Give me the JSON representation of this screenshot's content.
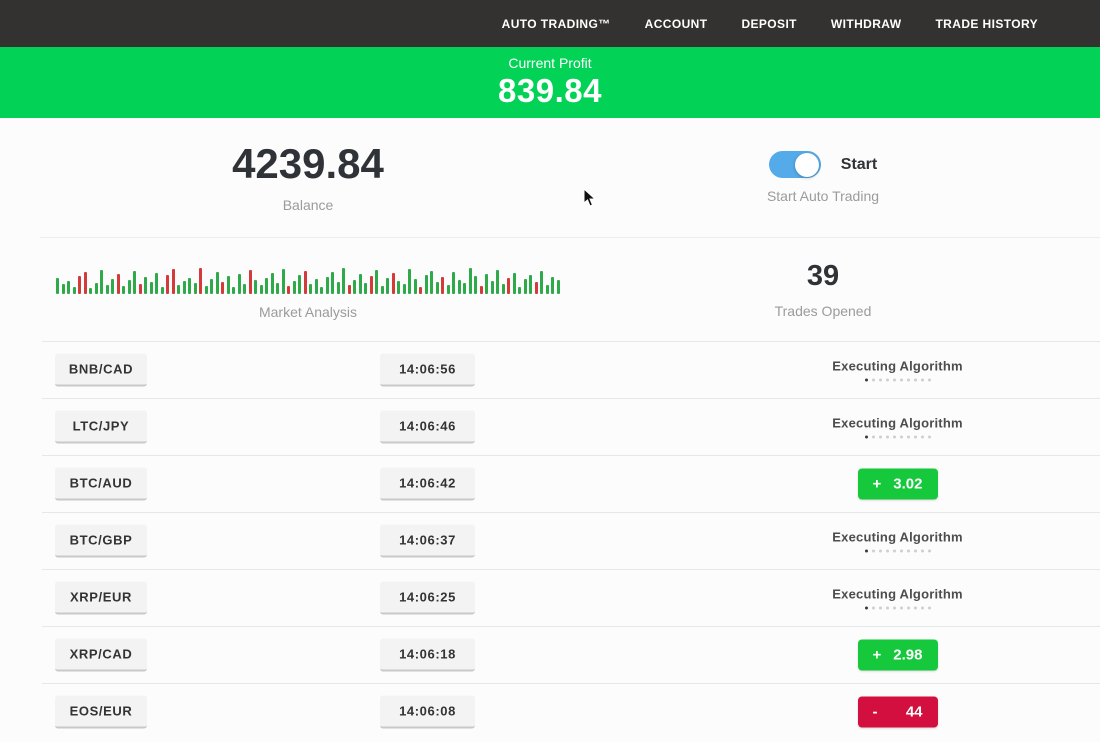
{
  "nav": {
    "items": [
      "AUTO TRADING™",
      "ACCOUNT",
      "DEPOSIT",
      "WITHDRAW",
      "TRADE HISTORY"
    ]
  },
  "banner": {
    "label": "Current Profit",
    "value": "839.84"
  },
  "balance": {
    "value": "4239.84",
    "label": "Balance"
  },
  "auto_trading": {
    "toggle_state": "on",
    "toggle_label": "Start",
    "label": "Start Auto Trading"
  },
  "market_analysis": {
    "label": "Market Analysis",
    "bars": [
      [
        16,
        "g"
      ],
      [
        10,
        "g"
      ],
      [
        13,
        "g"
      ],
      [
        7,
        "g"
      ],
      [
        18,
        "r"
      ],
      [
        22,
        "r"
      ],
      [
        6,
        "g"
      ],
      [
        11,
        "g"
      ],
      [
        24,
        "g"
      ],
      [
        9,
        "g"
      ],
      [
        15,
        "g"
      ],
      [
        20,
        "r"
      ],
      [
        8,
        "g"
      ],
      [
        14,
        "g"
      ],
      [
        23,
        "g"
      ],
      [
        10,
        "r"
      ],
      [
        17,
        "g"
      ],
      [
        12,
        "g"
      ],
      [
        21,
        "g"
      ],
      [
        7,
        "g"
      ],
      [
        19,
        "r"
      ],
      [
        25,
        "r"
      ],
      [
        9,
        "g"
      ],
      [
        13,
        "g"
      ],
      [
        16,
        "g"
      ],
      [
        11,
        "g"
      ],
      [
        26,
        "r"
      ],
      [
        8,
        "g"
      ],
      [
        15,
        "g"
      ],
      [
        22,
        "g"
      ],
      [
        12,
        "r"
      ],
      [
        18,
        "g"
      ],
      [
        7,
        "g"
      ],
      [
        20,
        "g"
      ],
      [
        10,
        "g"
      ],
      [
        24,
        "r"
      ],
      [
        14,
        "g"
      ],
      [
        9,
        "g"
      ],
      [
        16,
        "g"
      ],
      [
        21,
        "g"
      ],
      [
        11,
        "g"
      ],
      [
        25,
        "g"
      ],
      [
        8,
        "r"
      ],
      [
        13,
        "g"
      ],
      [
        19,
        "g"
      ],
      [
        23,
        "r"
      ],
      [
        10,
        "g"
      ],
      [
        15,
        "g"
      ],
      [
        7,
        "g"
      ],
      [
        17,
        "g"
      ],
      [
        22,
        "g"
      ],
      [
        12,
        "g"
      ],
      [
        26,
        "g"
      ],
      [
        9,
        "r"
      ],
      [
        14,
        "g"
      ],
      [
        20,
        "g"
      ],
      [
        11,
        "g"
      ],
      [
        18,
        "r"
      ],
      [
        24,
        "g"
      ],
      [
        8,
        "g"
      ],
      [
        16,
        "g"
      ],
      [
        21,
        "r"
      ],
      [
        13,
        "g"
      ],
      [
        10,
        "g"
      ],
      [
        25,
        "g"
      ],
      [
        15,
        "g"
      ],
      [
        7,
        "r"
      ],
      [
        19,
        "g"
      ],
      [
        23,
        "g"
      ],
      [
        12,
        "g"
      ],
      [
        17,
        "r"
      ],
      [
        9,
        "g"
      ],
      [
        22,
        "g"
      ],
      [
        14,
        "g"
      ],
      [
        11,
        "g"
      ],
      [
        26,
        "g"
      ],
      [
        18,
        "g"
      ],
      [
        8,
        "r"
      ],
      [
        20,
        "g"
      ],
      [
        13,
        "g"
      ],
      [
        24,
        "g"
      ],
      [
        10,
        "g"
      ],
      [
        16,
        "r"
      ],
      [
        21,
        "g"
      ],
      [
        7,
        "g"
      ],
      [
        15,
        "g"
      ],
      [
        19,
        "g"
      ],
      [
        12,
        "r"
      ],
      [
        23,
        "g"
      ],
      [
        9,
        "g"
      ],
      [
        17,
        "g"
      ],
      [
        14,
        "g"
      ]
    ]
  },
  "trades_opened": {
    "value": "39",
    "label": "Trades Opened"
  },
  "status_meta": {
    "executing_label": "Executing Algorithm",
    "dots_total": 10,
    "dots_active": 1
  },
  "trades": {
    "rows": [
      {
        "pair": "BNB/CAD",
        "time": "14:06:56",
        "status": {
          "type": "executing"
        }
      },
      {
        "pair": "LTC/JPY",
        "time": "14:06:46",
        "status": {
          "type": "executing"
        }
      },
      {
        "pair": "BTC/AUD",
        "time": "14:06:42",
        "status": {
          "type": "profit",
          "sign": "+",
          "value": "3.02"
        }
      },
      {
        "pair": "BTC/GBP",
        "time": "14:06:37",
        "status": {
          "type": "executing"
        }
      },
      {
        "pair": "XRP/EUR",
        "time": "14:06:25",
        "status": {
          "type": "executing"
        }
      },
      {
        "pair": "XRP/CAD",
        "time": "14:06:18",
        "status": {
          "type": "profit",
          "sign": "+",
          "value": "2.98"
        }
      },
      {
        "pair": "EOS/EUR",
        "time": "14:06:08",
        "status": {
          "type": "loss",
          "sign": "-",
          "value": "44"
        }
      }
    ]
  },
  "colors": {
    "banner_green": "#02d255",
    "profit_green": "#15c83c",
    "loss_red": "#d20f3e",
    "toggle_blue": "#55aae9",
    "nav_bg": "#333230"
  }
}
